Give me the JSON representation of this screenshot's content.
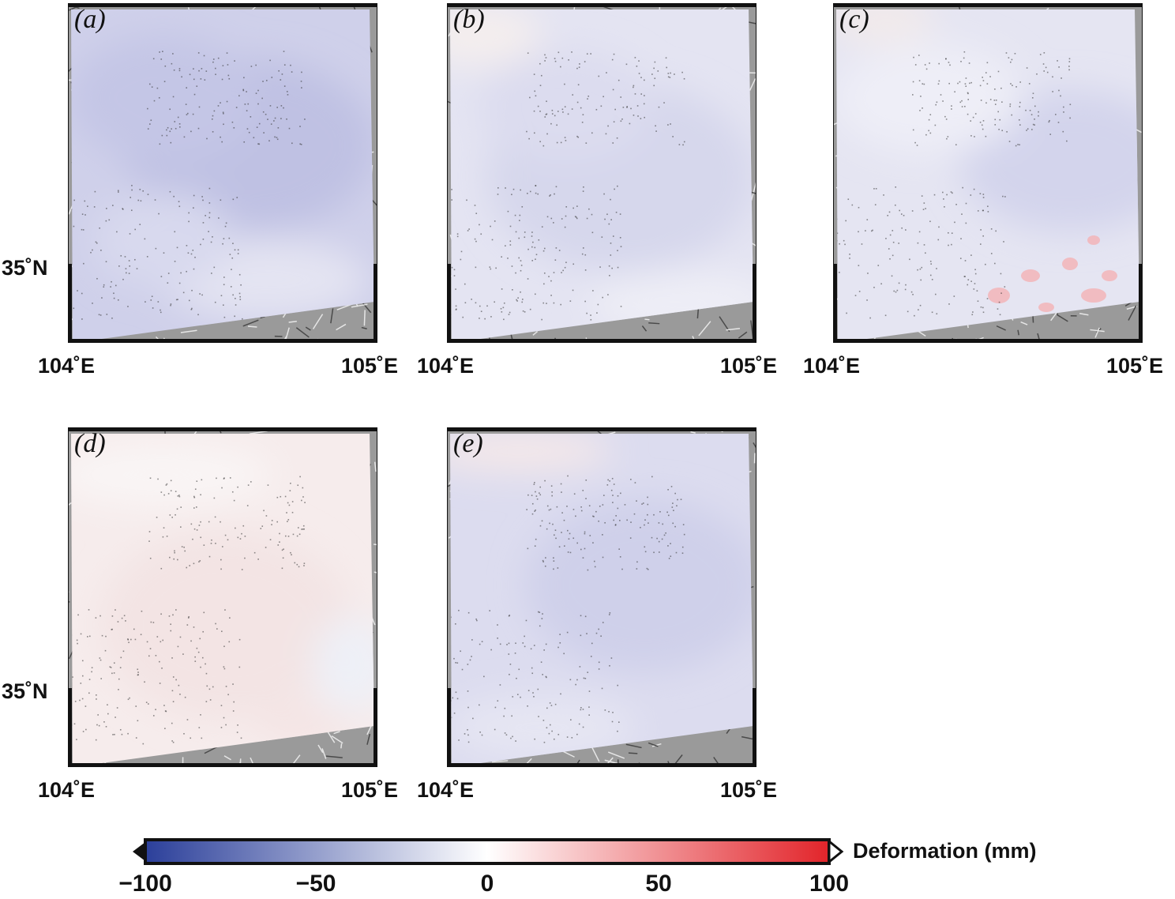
{
  "panels": [
    {
      "label": "(a)",
      "pattern": "blue"
    },
    {
      "label": "(b)",
      "pattern": "blue-light"
    },
    {
      "label": "(c)",
      "pattern": "blue-red-patches"
    },
    {
      "label": "(d)",
      "pattern": "red-light"
    },
    {
      "label": "(e)",
      "pattern": "blue-mid"
    }
  ],
  "axes": {
    "lon_min_label": "104˚E",
    "lon_max_label": "105˚E",
    "lat_label": "35˚N"
  },
  "colorbar": {
    "label": "Deformation (mm)",
    "ticks": [
      "−100",
      "−50",
      "0",
      "50",
      "100"
    ],
    "range": [
      -100,
      100
    ],
    "colors": {
      "min": "#2b3f9a",
      "mid": "#ffffff",
      "max": "#e2242a"
    }
  }
}
